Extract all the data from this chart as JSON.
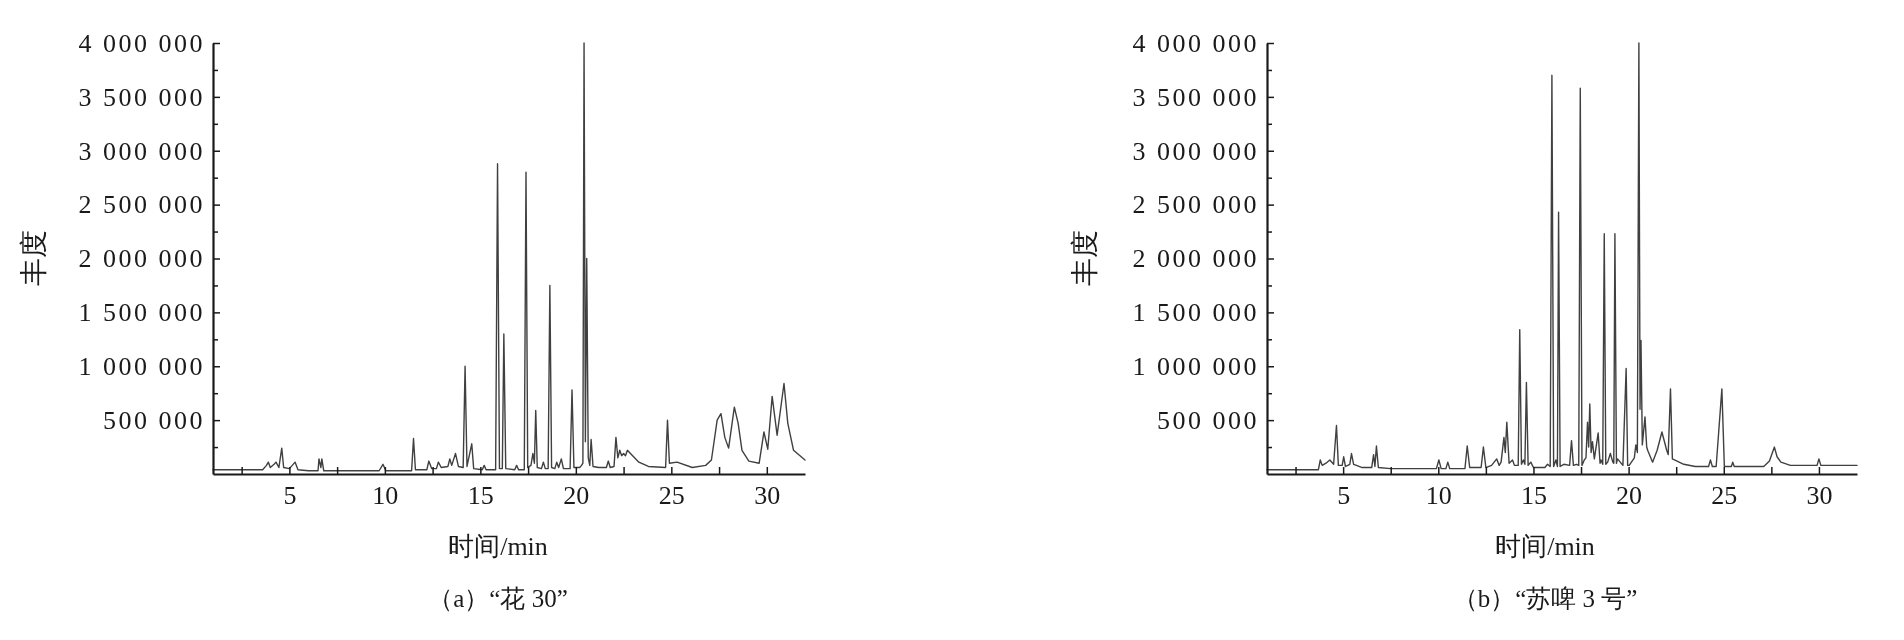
{
  "chart_data": [
    {
      "type": "line",
      "title": "（a）“花 30”",
      "xlabel": "时间/min",
      "ylabel": "丰度",
      "xlim": [
        1,
        32
      ],
      "ylim": [
        0,
        4000000
      ],
      "xticks": [
        {
          "value": 2.5,
          "label": null
        },
        5,
        {
          "value": 7.5,
          "label": null
        },
        10,
        {
          "value": 12.5,
          "label": null
        },
        15,
        {
          "value": 17.5,
          "label": null
        },
        20,
        {
          "value": 22.5,
          "label": null
        },
        25,
        {
          "value": 27.5,
          "label": null
        },
        30
      ],
      "yticks": [
        {
          "value": 250000,
          "label": null
        },
        {
          "value": 500000,
          "label": "500 000"
        },
        {
          "value": 750000,
          "label": null
        },
        {
          "value": 1000000,
          "label": "1 000 000"
        },
        {
          "value": 1250000,
          "label": null
        },
        {
          "value": 1500000,
          "label": "1 500 000"
        },
        {
          "value": 1750000,
          "label": null
        },
        {
          "value": 2000000,
          "label": "2 000 000"
        },
        {
          "value": 2250000,
          "label": null
        },
        {
          "value": 2500000,
          "label": "2 500 000"
        },
        {
          "value": 2750000,
          "label": null
        },
        {
          "value": 3000000,
          "label": "3 000 000"
        },
        {
          "value": 3250000,
          "label": null
        },
        {
          "value": 3500000,
          "label": "3 500 000"
        },
        {
          "value": 3750000,
          "label": null
        },
        {
          "value": 4000000,
          "label": "4 000 000"
        }
      ],
      "grid": false,
      "x": [
        1,
        3.6,
        3.8,
        3.9,
        4.0,
        4.2,
        4.3,
        4.45,
        4.6,
        4.7,
        5.0,
        5.3,
        5.45,
        6.0,
        6.5,
        6.55,
        6.65,
        6.7,
        6.8,
        9.7,
        9.9,
        10.05,
        11.4,
        11.5,
        11.6,
        12.2,
        12.3,
        12.45,
        12.7,
        12.8,
        12.95,
        13.3,
        13.4,
        13.5,
        13.7,
        13.85,
        14.1,
        14.2,
        14.3,
        14.55,
        14.65,
        15.1,
        15.2,
        15.3,
        15.8,
        15.9,
        16.0,
        16.15,
        16.23,
        16.33,
        16.8,
        16.9,
        17.0,
        17.3,
        17.39,
        17.48,
        17.65,
        17.75,
        17.83,
        17.9,
        17.98,
        18.2,
        18.3,
        18.4,
        18.55,
        18.64,
        18.73,
        18.9,
        19.0,
        19.1,
        19.24,
        19.35,
        19.7,
        19.8,
        19.9,
        20.2,
        20.3,
        20.37,
        20.43,
        20.5,
        20.57,
        20.65,
        20.73,
        20.8,
        20.9,
        21.2,
        21.6,
        21.7,
        21.8,
        22.0,
        22.1,
        22.2,
        22.3,
        22.4,
        22.5,
        22.6,
        22.7,
        22.86,
        23.3,
        23.8,
        24.7,
        24.8,
        24.9,
        25.3,
        26.1,
        26.8,
        27.1,
        27.4,
        27.6,
        27.8,
        28.0,
        28.3,
        28.5,
        28.7,
        29.06,
        29.6,
        29.85,
        30.05,
        30.28,
        30.54,
        30.9,
        31.1,
        31.4,
        32
      ],
      "series": [
        {
          "color": "#404040",
          "values": [
            40000,
            40000,
            80000,
            110000,
            60000,
            90000,
            110000,
            60000,
            240000,
            60000,
            50000,
            110000,
            40000,
            30000,
            30000,
            140000,
            60000,
            140000,
            30000,
            30000,
            90000,
            30000,
            30000,
            330000,
            40000,
            40000,
            120000,
            50000,
            50000,
            110000,
            60000,
            70000,
            140000,
            80000,
            190000,
            70000,
            60000,
            1000000,
            70000,
            280000,
            50000,
            40000,
            80000,
            40000,
            40000,
            2880000,
            50000,
            50000,
            1300000,
            50000,
            40000,
            80000,
            40000,
            40000,
            2800000,
            60000,
            80000,
            190000,
            100000,
            590000,
            60000,
            50000,
            110000,
            50000,
            50000,
            1750000,
            60000,
            50000,
            110000,
            60000,
            140000,
            50000,
            50000,
            780000,
            60000,
            60000,
            80000,
            100000,
            4000000,
            300000,
            2000000,
            150000,
            80000,
            320000,
            70000,
            60000,
            60000,
            120000,
            60000,
            70000,
            340000,
            150000,
            220000,
            170000,
            190000,
            170000,
            220000,
            190000,
            110000,
            70000,
            60000,
            500000,
            100000,
            110000,
            60000,
            80000,
            130000,
            500000,
            560000,
            340000,
            240000,
            620000,
            470000,
            220000,
            120000,
            100000,
            390000,
            230000,
            720000,
            360000,
            840000,
            470000,
            220000,
            130000
          ]
        }
      ]
    },
    {
      "type": "line",
      "title": "（b）“苏啤 3 号”",
      "xlabel": "时间/min",
      "ylabel": "丰度",
      "xlim": [
        1,
        32
      ],
      "ylim": [
        0,
        4000000
      ],
      "xticks": [
        {
          "value": 2.5,
          "label": null
        },
        5,
        {
          "value": 7.5,
          "label": null
        },
        10,
        {
          "value": 12.5,
          "label": null
        },
        15,
        {
          "value": 17.5,
          "label": null
        },
        20,
        {
          "value": 22.5,
          "label": null
        },
        25,
        {
          "value": 27.5,
          "label": null
        },
        30
      ],
      "yticks": [
        {
          "value": 250000,
          "label": null
        },
        {
          "value": 500000,
          "label": "500 000"
        },
        {
          "value": 750000,
          "label": null
        },
        {
          "value": 1000000,
          "label": "1 000 000"
        },
        {
          "value": 1250000,
          "label": null
        },
        {
          "value": 1500000,
          "label": "1 500 000"
        },
        {
          "value": 1750000,
          "label": null
        },
        {
          "value": 2000000,
          "label": "2 000 000"
        },
        {
          "value": 2250000,
          "label": null
        },
        {
          "value": 2500000,
          "label": "2 500 000"
        },
        {
          "value": 2750000,
          "label": null
        },
        {
          "value": 3000000,
          "label": "3 000 000"
        },
        {
          "value": 3250000,
          "label": null
        },
        {
          "value": 3500000,
          "label": "3 500 000"
        },
        {
          "value": 3750000,
          "label": null
        },
        {
          "value": 4000000,
          "label": "4 000 000"
        }
      ],
      "grid": false,
      "x": [
        1,
        3.7,
        3.8,
        3.9,
        4.1,
        4.3,
        4.5,
        4.65,
        4.75,
        4.95,
        5.03,
        5.12,
        5.24,
        5.35,
        5.44,
        5.55,
        5.7,
        6.0,
        6.5,
        6.6,
        6.67,
        6.75,
        6.85,
        7.5,
        9.9,
        10.03,
        10.15,
        10.4,
        10.5,
        10.6,
        11.4,
        11.52,
        11.65,
        12.25,
        12.37,
        12.5,
        12.8,
        13.07,
        13.2,
        13.3,
        13.45,
        13.52,
        13.6,
        13.72,
        13.9,
        14.0,
        14.2,
        14.28,
        14.37,
        14.47,
        14.55,
        14.63,
        14.72,
        14.86,
        15.0,
        15.6,
        15.74,
        15.88,
        15.97,
        16.06,
        16.18,
        16.26,
        16.32,
        16.4,
        16.6,
        16.9,
        17.0,
        17.1,
        17.26,
        17.38,
        17.46,
        17.55,
        17.67,
        17.76,
        17.84,
        17.9,
        17.96,
        18.03,
        18.1,
        18.2,
        18.4,
        18.5,
        18.55,
        18.64,
        18.72,
        18.8,
        18.9,
        19.04,
        19.17,
        19.22,
        19.28,
        19.36,
        19.42,
        19.7,
        19.87,
        19.95,
        20.03,
        20.3,
        20.38,
        20.46,
        20.54,
        20.6,
        20.65,
        20.72,
        20.86,
        20.95,
        21.0,
        21.26,
        21.5,
        21.75,
        22.0,
        22.08,
        22.2,
        22.3,
        22.9,
        23.5,
        24.2,
        24.3,
        24.4,
        24.6,
        24.9,
        25.03,
        25.4,
        25.47,
        25.55,
        27.1,
        27.4,
        27.66,
        27.8,
        28.0,
        28.5,
        29.9,
        30.0,
        30.1,
        32
      ],
      "series": [
        {
          "color": "#404040",
          "values": [
            40000,
            40000,
            130000,
            80000,
            100000,
            130000,
            90000,
            450000,
            80000,
            80000,
            160000,
            70000,
            80000,
            90000,
            190000,
            90000,
            80000,
            60000,
            60000,
            180000,
            70000,
            260000,
            60000,
            50000,
            50000,
            130000,
            50000,
            50000,
            110000,
            50000,
            50000,
            260000,
            60000,
            60000,
            250000,
            60000,
            80000,
            140000,
            80000,
            110000,
            340000,
            200000,
            480000,
            100000,
            130000,
            80000,
            80000,
            1340000,
            90000,
            130000,
            90000,
            850000,
            80000,
            110000,
            60000,
            60000,
            90000,
            70000,
            3700000,
            70000,
            130000,
            70000,
            2430000,
            70000,
            90000,
            80000,
            310000,
            80000,
            90000,
            80000,
            3580000,
            80000,
            130000,
            150000,
            480000,
            250000,
            650000,
            200000,
            300000,
            140000,
            380000,
            100000,
            130000,
            90000,
            2230000,
            90000,
            110000,
            190000,
            110000,
            100000,
            2230000,
            100000,
            140000,
            80000,
            980000,
            80000,
            80000,
            150000,
            270000,
            200000,
            4000000,
            600000,
            1240000,
            270000,
            530000,
            250000,
            220000,
            110000,
            220000,
            390000,
            220000,
            180000,
            790000,
            140000,
            90000,
            70000,
            70000,
            130000,
            70000,
            70000,
            790000,
            70000,
            70000,
            110000,
            70000,
            70000,
            120000,
            250000,
            160000,
            110000,
            80000,
            80000,
            140000,
            80000,
            80000
          ]
        }
      ]
    }
  ]
}
